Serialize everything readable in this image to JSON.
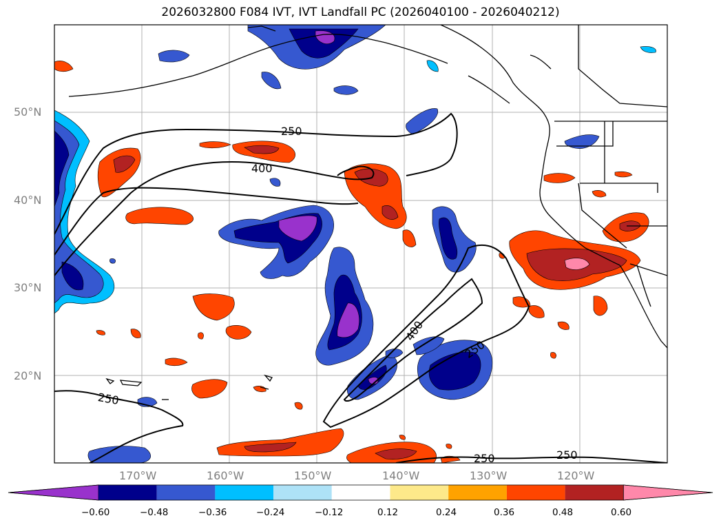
{
  "title": "2026032800 F084 IVT, IVT Landfall PC (2026040100 - 2026040212)",
  "lat_labels": [
    "50°N",
    "40°N",
    "30°N",
    "20°N"
  ],
  "lon_labels": [
    "170°W",
    "160°W",
    "150°W",
    "140°W",
    "130°W",
    "120°W"
  ],
  "contour_labels": [
    "250",
    "400",
    "400",
    "250",
    "250",
    "250",
    "250"
  ],
  "colorbar": {
    "ticks": [
      "−0.60",
      "−0.48",
      "−0.36",
      "−0.24",
      "−0.12",
      "0.12",
      "0.24",
      "0.36",
      "0.48",
      "0.60"
    ],
    "colors": [
      "#9932cc",
      "#00008b",
      "#3658d0",
      "#00bfff",
      "#aee2f7",
      "#ffffff",
      "#fde98a",
      "#ffa200",
      "#ff4500",
      "#b22222",
      "#ff88aa"
    ]
  }
}
